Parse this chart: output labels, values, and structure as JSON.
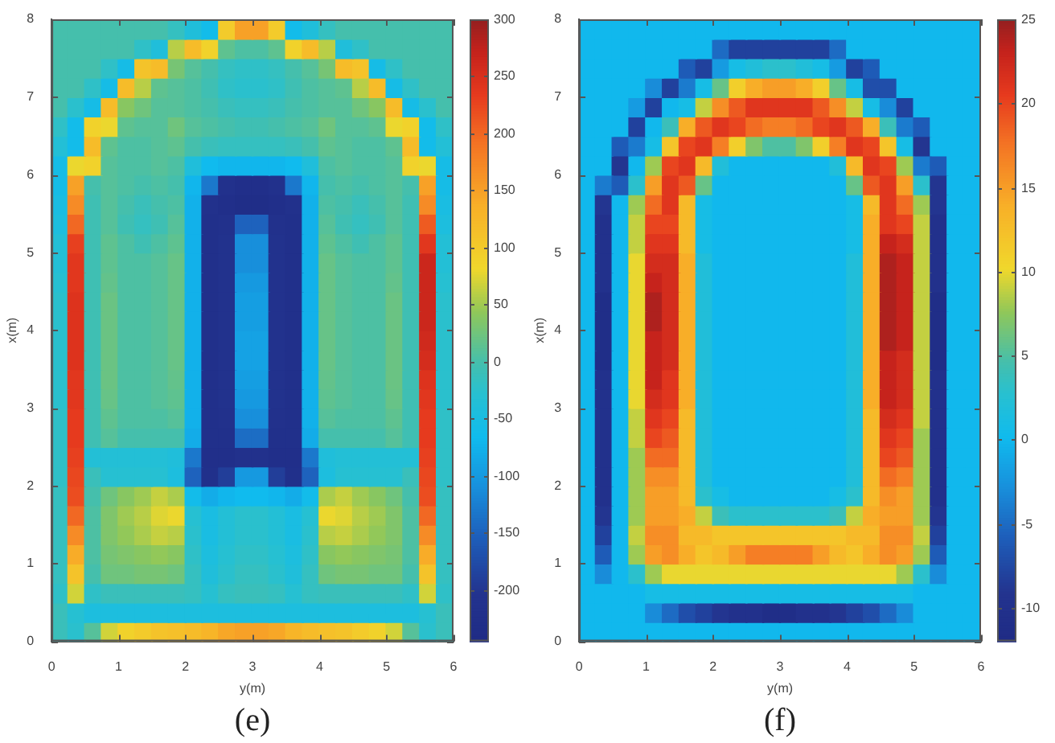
{
  "chart_data": [
    {
      "type": "heatmap",
      "xlabel": "y(m)",
      "ylabel": "x(m)",
      "annotations": [
        "(e)"
      ],
      "x": [
        0.125,
        0.375,
        0.625,
        0.875,
        1.125,
        1.375,
        1.625,
        1.875,
        2.125,
        2.375,
        2.625,
        2.875,
        3.125,
        3.375,
        3.625,
        3.875,
        4.125,
        4.375,
        4.625,
        4.875,
        5.125,
        5.375,
        5.625,
        5.875
      ],
      "y": [
        7.875,
        7.625,
        7.375,
        7.125,
        6.875,
        6.625,
        6.375,
        6.125,
        5.875,
        5.625,
        5.375,
        5.125,
        4.875,
        4.625,
        4.375,
        4.125,
        3.875,
        3.625,
        3.375,
        3.125,
        2.875,
        2.625,
        2.375,
        2.125,
        1.875,
        1.625,
        1.375,
        1.125,
        0.875,
        0.625,
        0.375,
        0.125
      ],
      "xlim": [
        0,
        6
      ],
      "xticks": [
        0,
        1,
        2,
        3,
        4,
        5,
        6
      ],
      "ylim": [
        0,
        8
      ],
      "yticks": [
        0,
        1,
        2,
        3,
        4,
        5,
        6,
        7,
        8
      ],
      "clim": [
        -245,
        300
      ],
      "cticks": [
        -200,
        -150,
        -100,
        -50,
        0,
        50,
        100,
        150,
        200,
        250,
        300
      ],
      "cells": [
        [
          0,
          0,
          0,
          0,
          0,
          0,
          0,
          -15,
          -40,
          -60,
          100,
          150,
          150,
          100,
          -60,
          -40,
          -15,
          0,
          0,
          0,
          0,
          0,
          0,
          0
        ],
        [
          0,
          0,
          0,
          0,
          0,
          -20,
          -40,
          60,
          120,
          90,
          15,
          5,
          5,
          15,
          90,
          120,
          60,
          -40,
          -20,
          0,
          0,
          0,
          0,
          0
        ],
        [
          0,
          0,
          0,
          -20,
          -55,
          110,
          120,
          30,
          10,
          0,
          -15,
          -20,
          -20,
          -15,
          0,
          10,
          30,
          120,
          110,
          -55,
          -20,
          0,
          0,
          0
        ],
        [
          0,
          0,
          -20,
          -55,
          120,
          60,
          15,
          10,
          5,
          -5,
          -20,
          -25,
          -25,
          -20,
          -5,
          5,
          10,
          15,
          60,
          120,
          -55,
          -20,
          0,
          0
        ],
        [
          0,
          -25,
          -55,
          120,
          40,
          25,
          10,
          10,
          5,
          0,
          -10,
          -15,
          -15,
          -10,
          0,
          5,
          10,
          10,
          25,
          40,
          120,
          -55,
          -25,
          0
        ],
        [
          -20,
          -60,
          90,
          80,
          15,
          10,
          10,
          25,
          10,
          5,
          0,
          -5,
          -5,
          0,
          5,
          10,
          25,
          10,
          10,
          15,
          80,
          90,
          -60,
          -20
        ],
        [
          -35,
          -60,
          120,
          15,
          5,
          5,
          10,
          15,
          0,
          -10,
          -15,
          -15,
          -15,
          -15,
          -10,
          0,
          15,
          10,
          5,
          5,
          15,
          120,
          -60,
          -35
        ],
        [
          -55,
          80,
          90,
          10,
          5,
          5,
          10,
          5,
          -40,
          -65,
          -70,
          -70,
          -70,
          -70,
          -65,
          -40,
          5,
          10,
          5,
          5,
          10,
          90,
          80,
          -55
        ],
        [
          -55,
          150,
          0,
          10,
          5,
          0,
          5,
          0,
          -70,
          -130,
          -215,
          -225,
          -225,
          -215,
          -130,
          -70,
          0,
          5,
          0,
          5,
          10,
          0,
          150,
          -55
        ],
        [
          -50,
          170,
          -5,
          10,
          0,
          -10,
          0,
          5,
          -75,
          -215,
          -225,
          -230,
          -230,
          -225,
          -215,
          -75,
          5,
          0,
          -10,
          0,
          10,
          -5,
          170,
          -50
        ],
        [
          -45,
          200,
          -5,
          10,
          -5,
          -15,
          -5,
          10,
          -75,
          -220,
          -215,
          -150,
          -150,
          -215,
          -220,
          -75,
          10,
          -5,
          -15,
          -5,
          10,
          -5,
          210,
          -45
        ],
        [
          -35,
          230,
          -5,
          15,
          5,
          -5,
          5,
          15,
          -75,
          -220,
          -210,
          -110,
          -110,
          -210,
          -220,
          -75,
          15,
          5,
          -5,
          5,
          15,
          -5,
          240,
          -35
        ],
        [
          -35,
          240,
          -5,
          15,
          5,
          5,
          10,
          20,
          -75,
          -220,
          -210,
          -110,
          -110,
          -210,
          -220,
          -75,
          20,
          10,
          5,
          5,
          15,
          -5,
          265,
          -35
        ],
        [
          -30,
          240,
          -5,
          18,
          5,
          5,
          10,
          20,
          -75,
          -220,
          -210,
          -100,
          -100,
          -210,
          -220,
          -75,
          20,
          10,
          5,
          5,
          18,
          -5,
          265,
          -30
        ],
        [
          -25,
          245,
          -5,
          22,
          5,
          5,
          10,
          20,
          -75,
          -220,
          -210,
          -95,
          -95,
          -210,
          -220,
          -75,
          20,
          10,
          5,
          5,
          22,
          -5,
          265,
          -25
        ],
        [
          -25,
          245,
          -5,
          22,
          5,
          5,
          10,
          20,
          -75,
          -220,
          -210,
          -95,
          -95,
          -210,
          -220,
          -75,
          20,
          10,
          5,
          5,
          22,
          -5,
          265,
          -25
        ],
        [
          -25,
          245,
          -5,
          22,
          5,
          5,
          10,
          20,
          -75,
          -220,
          -210,
          -90,
          -90,
          -210,
          -220,
          -75,
          20,
          10,
          5,
          5,
          22,
          -5,
          260,
          -25
        ],
        [
          -25,
          245,
          -5,
          22,
          5,
          5,
          10,
          20,
          -75,
          -220,
          -210,
          -90,
          -90,
          -210,
          -220,
          -75,
          20,
          10,
          5,
          5,
          22,
          -5,
          255,
          -25
        ],
        [
          -25,
          240,
          -5,
          22,
          5,
          5,
          10,
          18,
          -75,
          -220,
          -210,
          -95,
          -95,
          -210,
          -220,
          -75,
          18,
          10,
          5,
          5,
          22,
          -5,
          245,
          -25
        ],
        [
          -25,
          240,
          -5,
          20,
          5,
          5,
          10,
          15,
          -75,
          -220,
          -210,
          -100,
          -100,
          -210,
          -220,
          -75,
          15,
          10,
          5,
          5,
          20,
          -5,
          240,
          -25
        ],
        [
          -20,
          235,
          -5,
          15,
          5,
          5,
          5,
          10,
          -75,
          -220,
          -215,
          -110,
          -110,
          -215,
          -220,
          -75,
          10,
          5,
          5,
          5,
          15,
          -5,
          235,
          -20
        ],
        [
          -20,
          235,
          -5,
          10,
          0,
          0,
          0,
          0,
          -80,
          -220,
          -220,
          -140,
          -140,
          -220,
          -220,
          -80,
          0,
          0,
          0,
          0,
          10,
          -5,
          235,
          -20
        ],
        [
          -20,
          230,
          -35,
          -35,
          -35,
          -35,
          -35,
          -40,
          -130,
          -225,
          -225,
          -215,
          -215,
          -225,
          -225,
          -130,
          -40,
          -35,
          -35,
          -35,
          -35,
          -35,
          230,
          -20
        ],
        [
          -20,
          225,
          -10,
          -30,
          -30,
          -30,
          -30,
          -45,
          -150,
          -220,
          -190,
          -100,
          -100,
          -190,
          -220,
          -150,
          -45,
          -30,
          -30,
          -30,
          -30,
          -10,
          225,
          -20
        ],
        [
          -15,
          220,
          0,
          25,
          40,
          50,
          65,
          55,
          -60,
          -80,
          -70,
          -65,
          -65,
          -70,
          -80,
          -60,
          55,
          65,
          50,
          40,
          25,
          0,
          220,
          -15
        ],
        [
          -15,
          200,
          5,
          35,
          50,
          60,
          75,
          80,
          -30,
          -50,
          -35,
          -25,
          -25,
          -35,
          -50,
          -30,
          80,
          75,
          60,
          50,
          35,
          5,
          200,
          -15
        ],
        [
          -15,
          170,
          5,
          35,
          45,
          55,
          65,
          60,
          -25,
          -50,
          -35,
          -25,
          -25,
          -35,
          -50,
          -25,
          60,
          65,
          55,
          45,
          35,
          5,
          170,
          -15
        ],
        [
          -15,
          140,
          5,
          30,
          35,
          40,
          45,
          40,
          -20,
          -45,
          -30,
          -20,
          -20,
          -30,
          -45,
          -20,
          40,
          45,
          40,
          35,
          30,
          5,
          140,
          -15
        ],
        [
          -15,
          110,
          0,
          25,
          25,
          30,
          30,
          25,
          -15,
          -40,
          -25,
          -15,
          -15,
          -25,
          -40,
          -15,
          25,
          30,
          30,
          25,
          25,
          0,
          110,
          -15
        ],
        [
          -20,
          70,
          -20,
          -10,
          -10,
          -10,
          -10,
          -10,
          -15,
          -30,
          -15,
          -10,
          -10,
          -15,
          -30,
          -15,
          -10,
          -10,
          -10,
          -10,
          -10,
          -20,
          70,
          -20
        ],
        [
          -10,
          -30,
          -45,
          -45,
          -45,
          -45,
          -45,
          -45,
          -45,
          -45,
          -45,
          -45,
          -45,
          -45,
          -45,
          -45,
          -45,
          -45,
          -45,
          -45,
          -45,
          -45,
          -30,
          -10
        ],
        [
          -10,
          -25,
          10,
          70,
          90,
          100,
          110,
          115,
          120,
          130,
          145,
          150,
          150,
          145,
          130,
          120,
          115,
          110,
          100,
          90,
          70,
          10,
          -25,
          -10
        ]
      ]
    },
    {
      "type": "heatmap",
      "xlabel": "y(m)",
      "ylabel": "x(m)",
      "annotations": [
        "(f)"
      ],
      "x": [
        0.125,
        0.375,
        0.625,
        0.875,
        1.125,
        1.375,
        1.625,
        1.875,
        2.125,
        2.375,
        2.625,
        2.875,
        3.125,
        3.375,
        3.625,
        3.875,
        4.125,
        4.375,
        4.625,
        4.875,
        5.125,
        5.375,
        5.625,
        5.875
      ],
      "y": [
        7.875,
        7.625,
        7.375,
        7.125,
        6.875,
        6.625,
        6.375,
        6.125,
        5.875,
        5.625,
        5.375,
        5.125,
        4.875,
        4.625,
        4.375,
        4.125,
        3.875,
        3.625,
        3.375,
        3.125,
        2.875,
        2.625,
        2.375,
        2.125,
        1.875,
        1.625,
        1.375,
        1.125,
        0.875,
        0.625,
        0.375,
        0.125
      ],
      "xlim": [
        0,
        6
      ],
      "xticks": [
        0,
        1,
        2,
        3,
        4,
        5,
        6
      ],
      "ylim": [
        0,
        8
      ],
      "yticks": [
        0,
        1,
        2,
        3,
        4,
        5,
        6,
        7,
        8
      ],
      "clim": [
        -12,
        25
      ],
      "cticks": [
        -10,
        -5,
        0,
        5,
        10,
        15,
        20,
        25
      ],
      "cells": [
        [
          0,
          0,
          0,
          0,
          0,
          0,
          0,
          0,
          0,
          0,
          0,
          0,
          0,
          0,
          0,
          0,
          0,
          0,
          0,
          0,
          0,
          0,
          0,
          0
        ],
        [
          0,
          0,
          0,
          0,
          0,
          0,
          0,
          0,
          -5,
          -8,
          -8,
          -8,
          -8,
          -8,
          -8,
          -5,
          0,
          0,
          0,
          0,
          0,
          0,
          0,
          0
        ],
        [
          0,
          0,
          0,
          0,
          0,
          0,
          -6,
          -8,
          -2,
          1,
          2,
          3,
          3,
          2,
          1,
          -2,
          -8,
          -6,
          0,
          0,
          0,
          0,
          0,
          0
        ],
        [
          0,
          0,
          0,
          0,
          -3,
          -8,
          -4,
          1,
          6,
          11,
          14,
          15,
          15,
          14,
          11,
          6,
          1,
          -7,
          -7,
          0,
          0,
          0,
          0,
          0
        ],
        [
          0,
          0,
          0,
          -2,
          -8,
          0,
          1,
          9,
          16,
          19,
          21,
          21,
          21,
          21,
          19,
          16,
          9,
          1,
          -3,
          -8,
          0,
          0,
          0,
          0
        ],
        [
          0,
          0,
          0,
          -8,
          0,
          4,
          14,
          19,
          21,
          20,
          18,
          17,
          17,
          18,
          20,
          21,
          19,
          14,
          4,
          -4,
          -6,
          0,
          0,
          0
        ],
        [
          0,
          0,
          -6,
          -4,
          1,
          12,
          20,
          21,
          17,
          11,
          7,
          5,
          5,
          7,
          11,
          17,
          21,
          20,
          12,
          1,
          -9,
          0,
          0,
          0
        ],
        [
          0,
          0,
          -9,
          0,
          8,
          20,
          21,
          13,
          2,
          0,
          0,
          0,
          0,
          0,
          0,
          2,
          13,
          21,
          20,
          8,
          -4,
          -6,
          0,
          0
        ],
        [
          0,
          -4,
          -6,
          3,
          15,
          21,
          19,
          6,
          0,
          0,
          0,
          0,
          0,
          0,
          0,
          0,
          6,
          19,
          21,
          15,
          3,
          -9,
          0,
          0
        ],
        [
          0,
          -9,
          0,
          8,
          18,
          21,
          13,
          1,
          0,
          0,
          0,
          0,
          0,
          0,
          0,
          0,
          1,
          13,
          21,
          18,
          8,
          -9,
          0,
          0
        ],
        [
          0,
          -10,
          0,
          9,
          20,
          20,
          13,
          1,
          0,
          0,
          0,
          0,
          0,
          0,
          0,
          0,
          1,
          14,
          21,
          20,
          9,
          -10,
          0,
          0
        ],
        [
          0,
          -10,
          0,
          9,
          21,
          21,
          13,
          1,
          0,
          0,
          0,
          0,
          0,
          0,
          0,
          0,
          1,
          14,
          23,
          22,
          9,
          -10,
          0,
          0
        ],
        [
          0,
          -10,
          0,
          10,
          22,
          22,
          14,
          2,
          0,
          0,
          0,
          0,
          0,
          0,
          0,
          0,
          2,
          14,
          24,
          23,
          9,
          -10,
          0,
          0
        ],
        [
          0,
          -10,
          0,
          10,
          23,
          22,
          14,
          2,
          0,
          0,
          0,
          0,
          0,
          0,
          0,
          0,
          2,
          14,
          24,
          23,
          9,
          -10,
          0,
          0
        ],
        [
          0,
          -11,
          0,
          10,
          24,
          22,
          14,
          2,
          0,
          0,
          0,
          0,
          0,
          0,
          0,
          0,
          2,
          14,
          24,
          23,
          9,
          -11,
          0,
          0
        ],
        [
          0,
          -11,
          0,
          10,
          24,
          22,
          14,
          2,
          0,
          0,
          0,
          0,
          0,
          0,
          0,
          0,
          2,
          14,
          24,
          23,
          9,
          -11,
          0,
          0
        ],
        [
          0,
          -11,
          0,
          10,
          23,
          22,
          14,
          2,
          0,
          0,
          0,
          0,
          0,
          0,
          0,
          0,
          2,
          14,
          24,
          23,
          9,
          -11,
          0,
          0
        ],
        [
          0,
          -11,
          0,
          10,
          23,
          22,
          14,
          2,
          0,
          0,
          0,
          0,
          0,
          0,
          0,
          0,
          2,
          14,
          23,
          22,
          9,
          -11,
          0,
          0
        ],
        [
          0,
          -10,
          0,
          10,
          23,
          21,
          14,
          2,
          0,
          0,
          0,
          0,
          0,
          0,
          0,
          0,
          2,
          14,
          23,
          22,
          9,
          -10,
          0,
          0
        ],
        [
          0,
          -10,
          0,
          10,
          22,
          21,
          14,
          2,
          0,
          0,
          0,
          0,
          0,
          0,
          0,
          0,
          2,
          14,
          23,
          22,
          9,
          -10,
          0,
          0
        ],
        [
          0,
          -10,
          0,
          9,
          21,
          20,
          13,
          2,
          0,
          0,
          0,
          0,
          0,
          0,
          0,
          0,
          2,
          13,
          22,
          21,
          9,
          -10,
          0,
          0
        ],
        [
          0,
          -10,
          0,
          9,
          20,
          19,
          13,
          2,
          0,
          0,
          0,
          0,
          0,
          0,
          0,
          0,
          2,
          13,
          21,
          20,
          8,
          -10,
          0,
          0
        ],
        [
          0,
          -10,
          0,
          8,
          18,
          18,
          13,
          2,
          0,
          0,
          0,
          0,
          0,
          0,
          0,
          0,
          2,
          13,
          20,
          19,
          8,
          -10,
          0,
          0
        ],
        [
          0,
          -10,
          0,
          8,
          16,
          16,
          13,
          2,
          0,
          0,
          0,
          0,
          0,
          0,
          0,
          0,
          2,
          13,
          18,
          17,
          8,
          -10,
          0,
          0
        ],
        [
          0,
          -10,
          0,
          8,
          15,
          15,
          13,
          3,
          1,
          0,
          0,
          0,
          0,
          0,
          0,
          1,
          3,
          13,
          16,
          15,
          8,
          -10,
          0,
          0
        ],
        [
          0,
          -9,
          0,
          8,
          15,
          15,
          14,
          9,
          4,
          3,
          3,
          3,
          3,
          3,
          3,
          4,
          9,
          14,
          15,
          15,
          8,
          -9,
          0,
          0
        ],
        [
          0,
          -8,
          0,
          9,
          16,
          16,
          13,
          13,
          12,
          12,
          12,
          12,
          12,
          12,
          12,
          12,
          13,
          13,
          16,
          16,
          9,
          -8,
          0,
          0
        ],
        [
          0,
          -6,
          0,
          8,
          15,
          16,
          14,
          12,
          13,
          15,
          17,
          17,
          17,
          17,
          15,
          13,
          12,
          14,
          16,
          15,
          8,
          -6,
          0,
          0
        ],
        [
          0,
          -3,
          0,
          3,
          8,
          10,
          10,
          10,
          10,
          10,
          10,
          10,
          10,
          10,
          10,
          10,
          10,
          10,
          10,
          8,
          3,
          -3,
          0,
          0
        ],
        [
          0,
          0,
          0,
          0,
          1,
          1,
          1,
          1,
          1,
          1,
          1,
          1,
          1,
          1,
          1,
          1,
          1,
          1,
          1,
          1,
          0,
          0,
          0,
          0
        ],
        [
          0,
          0,
          0,
          0,
          -3,
          -5,
          -7,
          -8,
          -9,
          -10,
          -10,
          -11,
          -11,
          -10,
          -10,
          -9,
          -8,
          -7,
          -5,
          -3,
          0,
          0,
          0,
          0
        ],
        [
          0,
          0,
          0,
          0,
          0,
          0,
          0,
          0,
          0,
          0,
          0,
          0,
          0,
          0,
          0,
          0,
          0,
          0,
          0,
          0,
          0,
          0,
          0,
          0
        ]
      ]
    }
  ]
}
